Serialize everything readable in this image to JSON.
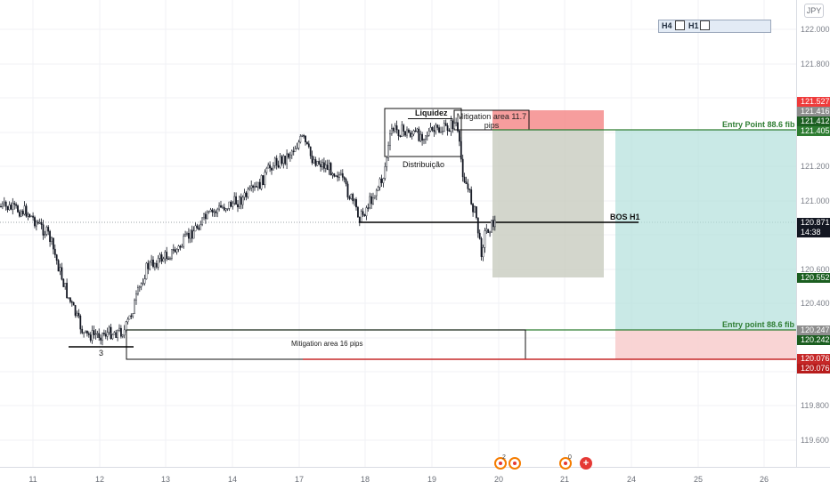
{
  "chart": {
    "currency": "JPY",
    "timeframe_widget": {
      "h4": "H4",
      "h1": "H1"
    },
    "price_axis_ticks": [
      "122.000",
      "121.800",
      "121.200",
      "121.000",
      "120.600",
      "120.400",
      "119.800",
      "119.600"
    ],
    "price_badges": [
      {
        "text": "121.527",
        "color": "#ef3b3b"
      },
      {
        "text": "121.416",
        "color": "#8e8e8e"
      },
      {
        "text": "121.412",
        "color": "#1b5e20"
      },
      {
        "text": "121.405",
        "color": "#2e7d32"
      },
      {
        "text": "120.871",
        "color": "#131722"
      },
      {
        "text": "14:38",
        "color": "#131722"
      },
      {
        "text": "120.552",
        "color": "#1b5e20"
      },
      {
        "text": "120.247",
        "color": "#8e8e8e"
      },
      {
        "text": "120.242",
        "color": "#1b5e20"
      },
      {
        "text": "120.076",
        "color": "#c62828"
      },
      {
        "text": "120.076",
        "color": "#b71c1c"
      }
    ],
    "date_labels": [
      "11",
      "12",
      "13",
      "14",
      "17",
      "18",
      "19",
      "20",
      "21",
      "24",
      "25",
      "26"
    ],
    "annotations": {
      "liquidez": "Liquidez",
      "distribuicao": "Distribuição",
      "mitigation_top_line1": "Mitigation area 11.7",
      "mitigation_top_line2": "pips",
      "entry_top": "Entry Point 88.6 fib",
      "bos": "BOS H1",
      "entry_bottom": "Entry point 88.6 fib",
      "mitigation_bottom": "Mitigation area 16 pips",
      "count_label": "3"
    },
    "events": {
      "first_count": "2",
      "second_count": "0"
    },
    "colors": {
      "bull_zone": "#b2dfdb",
      "bear_zone": "#f48c8c",
      "stop_zone": "#f8cfcf",
      "neutral_zone": "#c8ccbf",
      "entry_line": "#2e7d32",
      "stop_line": "#c62828"
    }
  }
}
